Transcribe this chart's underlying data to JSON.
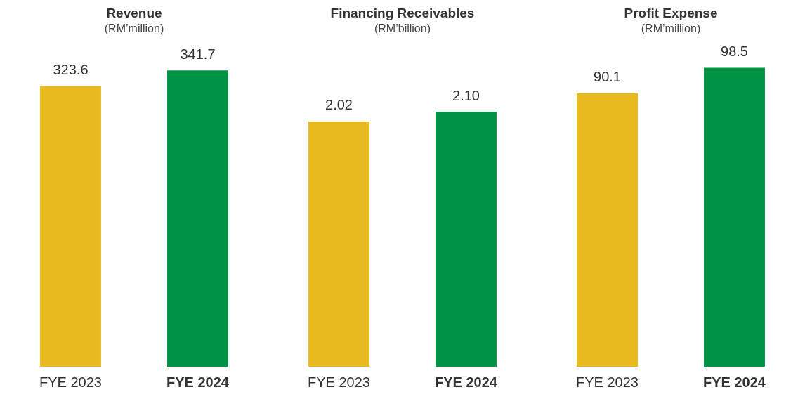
{
  "chart_data": [
    {
      "type": "bar",
      "title": "Revenue",
      "subtitle": "(RM’million)",
      "categories": [
        "FYE 2023",
        "FYE 2024"
      ],
      "values": [
        323.6,
        341.7
      ],
      "colors": [
        "#e9b920",
        "#009245"
      ],
      "data_labels": true
    },
    {
      "type": "bar",
      "title": "Financing Receivables",
      "subtitle": "(RM’billion)",
      "categories": [
        "FYE 2023",
        "FYE 2024"
      ],
      "values": [
        2.02,
        2.1
      ],
      "value_labels": [
        "2.02",
        "2.10"
      ],
      "colors": [
        "#e9b920",
        "#009245"
      ]
    },
    {
      "type": "bar",
      "title": "Profit Expense",
      "subtitle": "(RM’million)",
      "categories": [
        "FYE 2023",
        "FYE 2024"
      ],
      "values": [
        90.1,
        98.5
      ],
      "colors": [
        "#e9b920",
        "#009245"
      ],
      "data_labels": true
    }
  ]
}
